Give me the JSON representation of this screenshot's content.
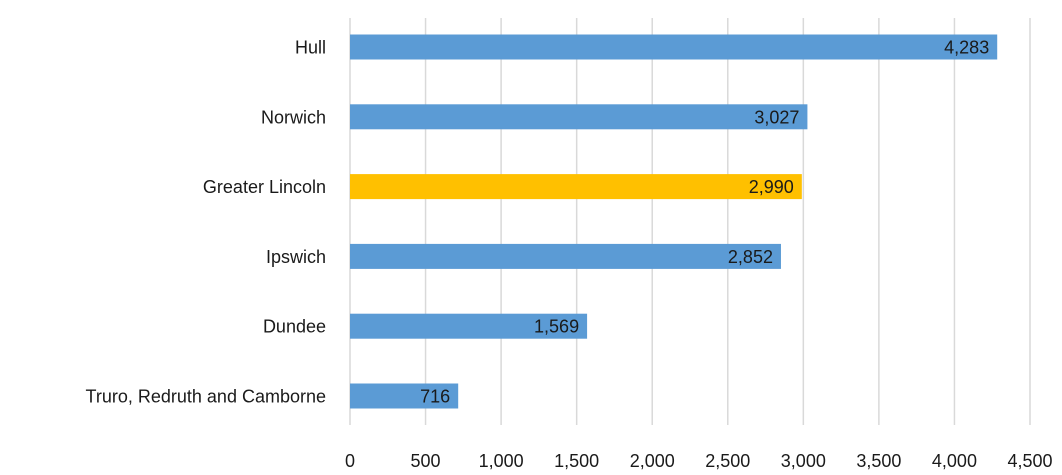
{
  "chart_data": {
    "type": "bar",
    "orientation": "horizontal",
    "categories": [
      "Hull",
      "Norwich",
      "Greater Lincoln",
      "Ipswich",
      "Dundee",
      "Truro, Redruth and Camborne"
    ],
    "values": [
      4283,
      3027,
      2990,
      2852,
      1569,
      716
    ],
    "value_labels": [
      "4,283",
      "3,027",
      "2,990",
      "2,852",
      "1,569",
      "716"
    ],
    "bar_colors": [
      "#5b9bd5",
      "#5b9bd5",
      "#ffc000",
      "#5b9bd5",
      "#5b9bd5",
      "#5b9bd5"
    ],
    "xlim": [
      0,
      4500
    ],
    "xticks": [
      0,
      500,
      1000,
      1500,
      2000,
      2500,
      3000,
      3500,
      4000,
      4500
    ],
    "xtick_labels": [
      "0",
      "500",
      "1,000",
      "1,500",
      "2,000",
      "2,500",
      "3,000",
      "3,500",
      "4,000",
      "4,500"
    ],
    "grid": "vertical",
    "title": "",
    "xlabel": "",
    "ylabel": "",
    "legend": "none"
  }
}
